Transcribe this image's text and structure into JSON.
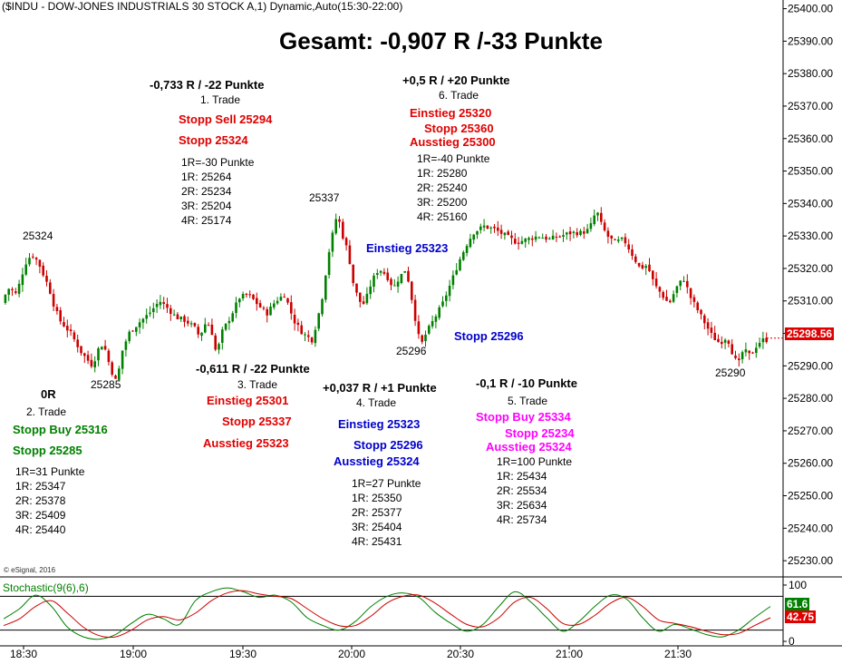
{
  "header": "($INDU - DOW-JONES INDUSTRIALS 30 STOCK A,1) Dynamic,Auto(15:30-22:00)",
  "summary": "Gesamt: -0,907 R /-33 Punkte",
  "copyright": "© eSignal, 2016",
  "chart_data": [
    {
      "type": "candlestick",
      "x_tick_labels": [
        "18:30",
        "19:00",
        "19:30",
        "20:00",
        "20:30",
        "21:00",
        "21:30"
      ],
      "y_tick_labels": [
        "25400.00",
        "25390.00",
        "25380.00",
        "25370.00",
        "25360.00",
        "25350.00",
        "25340.00",
        "25330.00",
        "25320.00",
        "25310.00",
        "25300.00",
        "25290.00",
        "25280.00",
        "25270.00",
        "25260.00",
        "25250.00",
        "25240.00",
        "25230.00"
      ],
      "ylim": [
        25225,
        25401
      ],
      "last_price": "25298.56",
      "price_points": [
        [
          0,
          25306
        ],
        [
          6,
          25311
        ],
        [
          12,
          25314
        ],
        [
          20,
          25312
        ],
        [
          26,
          25318
        ],
        [
          32,
          25323
        ],
        [
          38,
          25324
        ],
        [
          44,
          25322
        ],
        [
          50,
          25318
        ],
        [
          56,
          25314
        ],
        [
          62,
          25308
        ],
        [
          68,
          25304
        ],
        [
          74,
          25302
        ],
        [
          80,
          25300
        ],
        [
          86,
          25297
        ],
        [
          92,
          25294
        ],
        [
          98,
          25292
        ],
        [
          104,
          25290
        ],
        [
          110,
          25295
        ],
        [
          116,
          25297
        ],
        [
          122,
          25291
        ],
        [
          128,
          25286
        ],
        [
          131,
          25285
        ],
        [
          136,
          25294
        ],
        [
          144,
          25300
        ],
        [
          154,
          25303
        ],
        [
          166,
          25306
        ],
        [
          178,
          25310
        ],
        [
          186,
          25308
        ],
        [
          196,
          25305
        ],
        [
          206,
          25304
        ],
        [
          216,
          25302
        ],
        [
          222,
          25299
        ],
        [
          230,
          25304
        ],
        [
          236,
          25300
        ],
        [
          241,
          25293
        ],
        [
          246,
          25300
        ],
        [
          256,
          25305
        ],
        [
          266,
          25311
        ],
        [
          276,
          25312
        ],
        [
          286,
          25309
        ],
        [
          296,
          25306
        ],
        [
          306,
          25310
        ],
        [
          316,
          25312
        ],
        [
          326,
          25304
        ],
        [
          336,
          25300
        ],
        [
          346,
          25298
        ],
        [
          352,
          25304
        ],
        [
          358,
          25312
        ],
        [
          364,
          25324
        ],
        [
          370,
          25332
        ],
        [
          374,
          25337
        ],
        [
          380,
          25330
        ],
        [
          386,
          25325
        ],
        [
          392,
          25315
        ],
        [
          398,
          25310
        ],
        [
          404,
          25309
        ],
        [
          412,
          25316
        ],
        [
          420,
          25320
        ],
        [
          428,
          25318
        ],
        [
          436,
          25314
        ],
        [
          442,
          25317
        ],
        [
          450,
          25320
        ],
        [
          456,
          25311
        ],
        [
          461,
          25303
        ],
        [
          466,
          25296
        ],
        [
          472,
          25300
        ],
        [
          480,
          25304
        ],
        [
          490,
          25309
        ],
        [
          500,
          25316
        ],
        [
          508,
          25322
        ],
        [
          516,
          25327
        ],
        [
          524,
          25331
        ],
        [
          536,
          25333
        ],
        [
          548,
          25332
        ],
        [
          560,
          25330
        ],
        [
          572,
          25328
        ],
        [
          584,
          25329
        ],
        [
          596,
          25330
        ],
        [
          608,
          25329
        ],
        [
          620,
          25330
        ],
        [
          632,
          25331
        ],
        [
          644,
          25331
        ],
        [
          652,
          25332
        ],
        [
          660,
          25338
        ],
        [
          666,
          25333
        ],
        [
          672,
          25330
        ],
        [
          680,
          25328
        ],
        [
          690,
          25329
        ],
        [
          700,
          25324
        ],
        [
          708,
          25320
        ],
        [
          716,
          25321
        ],
        [
          724,
          25315
        ],
        [
          732,
          25312
        ],
        [
          740,
          25309
        ],
        [
          748,
          25314
        ],
        [
          756,
          25317
        ],
        [
          764,
          25311
        ],
        [
          772,
          25307
        ],
        [
          780,
          25303
        ],
        [
          788,
          25299
        ],
        [
          796,
          25297
        ],
        [
          804,
          25299
        ],
        [
          810,
          25294
        ],
        [
          816,
          25290
        ],
        [
          822,
          25295
        ],
        [
          830,
          25293
        ],
        [
          838,
          25297
        ],
        [
          844,
          25298
        ]
      ],
      "price_labels": [
        "25324",
        "25285",
        "25337",
        "25296",
        "25290"
      ]
    },
    {
      "type": "line",
      "title": "Stochastic(9(6),6)",
      "y_tick_labels": [
        "100",
        "0"
      ],
      "ylim": [
        -8,
        108
      ],
      "levels": [
        80,
        20
      ],
      "last_values": [
        "61.6",
        "42.75"
      ],
      "series": [
        {
          "color": "#008000",
          "values": [
            40,
            58,
            82,
            62,
            25,
            8,
            4,
            12,
            32,
            48,
            40,
            30,
            72,
            88,
            95,
            88,
            78,
            82,
            70,
            42,
            28,
            20,
            35,
            62,
            80,
            86,
            78,
            52,
            32,
            18,
            30,
            62,
            88,
            70,
            42,
            18,
            35,
            62,
            82,
            75,
            42,
            18,
            30,
            22,
            12,
            8,
            20,
            42,
            62
          ]
        },
        {
          "color": "#cc0000",
          "values": [
            28,
            40,
            62,
            72,
            50,
            25,
            10,
            8,
            20,
            38,
            44,
            38,
            50,
            72,
            86,
            90,
            84,
            80,
            76,
            58,
            40,
            28,
            28,
            45,
            68,
            80,
            82,
            68,
            48,
            30,
            26,
            42,
            70,
            78,
            58,
            32,
            30,
            46,
            68,
            78,
            62,
            38,
            32,
            26,
            18,
            12,
            14,
            28,
            42
          ]
        }
      ]
    }
  ],
  "trades": {
    "t1": {
      "result": "-0,733 R / -22 Punkte",
      "name": "1. Trade",
      "stop_sell": "Stopp Sell 25294",
      "stop": "Stopp 25324",
      "r0": "1R=-30 Punkte",
      "r1": "1R: 25264",
      "r2": "2R: 25234",
      "r3": "3R: 25204",
      "r4": "4R: 25174"
    },
    "t2": {
      "result": "0R",
      "name": "2. Trade",
      "stop_buy": "Stopp Buy 25316",
      "stop": "Stopp 25285",
      "r0": "1R=31 Punkte",
      "r1": "1R: 25347",
      "r2": "2R: 25378",
      "r3": "3R: 25409",
      "r4": "4R: 25440"
    },
    "t3": {
      "result": "-0,611 R / -22 Punkte",
      "name": "3. Trade",
      "entry": "Einstieg 25301",
      "stop": "Stopp 25337",
      "exit": "Ausstieg 25323"
    },
    "t4": {
      "result": "+0,037 R / +1 Punkte",
      "name": "4. Trade",
      "entry": "Einstieg 25323",
      "stop": "Stopp 25296",
      "exit": "Ausstieg 25324",
      "r0": "1R=27 Punkte",
      "r1": "1R: 25350",
      "r2": "2R: 25377",
      "r3": "3R: 25404",
      "r4": "4R: 25431"
    },
    "t5": {
      "result": "-0,1 R / -10 Punkte",
      "name": "5. Trade",
      "stop_buy": "Stopp Buy 25334",
      "stop": "Stopp 25234",
      "exit": "Ausstieg 25324",
      "r0": "1R=100 Punkte",
      "r1": "1R: 25434",
      "r2": "2R: 25534",
      "r3": "3R: 25634",
      "r4": "4R: 25734"
    },
    "t6": {
      "result": "+0,5 R / +20 Punkte",
      "name": "6. Trade",
      "entry": "Einstieg 25320",
      "stop": "Stopp 25360",
      "exit": "Ausstieg 25300",
      "r0": "1R=-40 Punkte",
      "r1": "1R: 25280",
      "r2": "2R: 25240",
      "r3": "3R: 25200",
      "r4": "4R: 25160"
    }
  },
  "chart_notes": {
    "einstieg": "Einstieg 25323",
    "stopp": "Stopp 25296"
  }
}
